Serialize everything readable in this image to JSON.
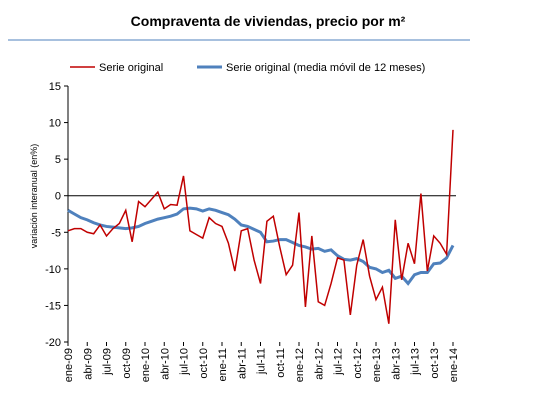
{
  "chart_data": {
    "type": "line",
    "title": "Compraventa de viviendas, precio por m²",
    "y_label": "variación interanual (en%)",
    "categories": [
      "ene-09",
      null,
      null,
      "abr-09",
      null,
      null,
      "jul-09",
      null,
      null,
      "oct-09",
      null,
      null,
      "ene-10",
      null,
      null,
      "abr-10",
      null,
      null,
      "jul-10",
      null,
      null,
      "oct-10",
      null,
      null,
      "ene-11",
      null,
      null,
      "abr-11",
      null,
      null,
      "jul-11",
      null,
      null,
      "oct-11",
      null,
      null,
      "ene-12",
      null,
      null,
      "abr-12",
      null,
      null,
      "jul-12",
      null,
      null,
      "oct-12",
      null,
      null,
      "ene-13",
      null,
      null,
      "abr-13",
      null,
      null,
      "jul-13",
      null,
      null,
      "oct-13",
      null,
      null,
      "ene-14"
    ],
    "series": [
      {
        "name": "Serie original",
        "color": "#c00000",
        "values": [
          -4.8,
          -4.5,
          -4.5,
          -5.0,
          -5.2,
          -4.0,
          -5.5,
          -4.5,
          -3.8,
          -2.0,
          -6.3,
          -0.8,
          -1.5,
          -0.5,
          0.5,
          -1.8,
          -1.2,
          -1.3,
          2.7,
          -4.8,
          -5.3,
          -5.8,
          -3.0,
          -3.8,
          -4.2,
          -6.5,
          -10.3,
          -4.8,
          -4.5,
          -8.8,
          -12.0,
          -3.5,
          -2.8,
          -7.0,
          -10.8,
          -9.5,
          -2.3,
          -15.2,
          -5.5,
          -14.5,
          -15.0,
          -12.0,
          -8.5,
          -8.8,
          -16.3,
          -9.5,
          -6.0,
          -11.0,
          -14.2,
          -12.5,
          -17.5,
          -3.3,
          -11.5,
          -6.5,
          -9.3,
          0.3,
          -10.3,
          -5.5,
          -6.5,
          -8.0,
          9.0
        ]
      },
      {
        "name": "Serie original (media móvil de 12 meses)",
        "color": "#4f81bd",
        "values": [
          -2.0,
          -2.5,
          -3.0,
          -3.3,
          -3.7,
          -4.0,
          -4.2,
          -4.3,
          -4.4,
          -4.5,
          -4.4,
          -4.2,
          -3.8,
          -3.5,
          -3.2,
          -3.0,
          -2.8,
          -2.5,
          -1.8,
          -1.7,
          -1.8,
          -2.1,
          -1.8,
          -2.0,
          -2.3,
          -2.6,
          -3.2,
          -4.0,
          -4.2,
          -4.6,
          -5.0,
          -6.3,
          -6.2,
          -6.0,
          -6.0,
          -6.4,
          -6.8,
          -7.0,
          -7.3,
          -7.2,
          -7.6,
          -7.4,
          -8.2,
          -8.7,
          -8.8,
          -8.6,
          -9.0,
          -9.8,
          -10.0,
          -10.5,
          -10.2,
          -11.3,
          -11.0,
          -12.0,
          -10.8,
          -10.5,
          -10.5,
          -9.3,
          -9.2,
          -8.5,
          -6.8
        ]
      }
    ],
    "ylim": [
      -20,
      15
    ],
    "yticks": [
      -20,
      -15,
      -10,
      -5,
      0,
      5,
      10,
      15
    ]
  }
}
